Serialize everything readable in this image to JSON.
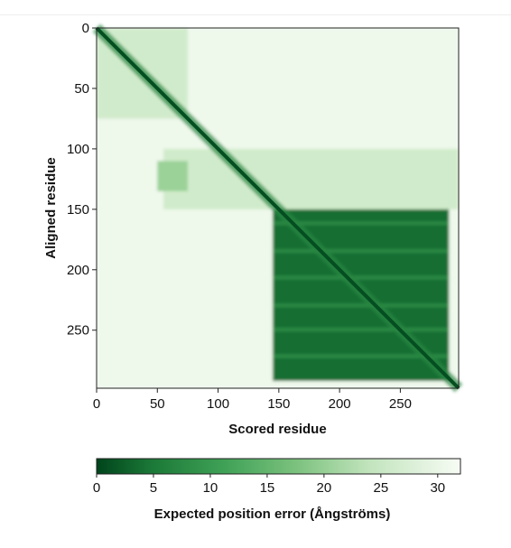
{
  "chart_data": {
    "type": "heatmap",
    "description_free": true,
    "xlabel": "Scored residue",
    "ylabel": "Aligned residue",
    "n_residues": 298,
    "xlim": [
      0,
      298
    ],
    "ylim": [
      0,
      298
    ],
    "x_ticks": [
      0,
      50,
      100,
      150,
      200,
      250
    ],
    "y_ticks": [
      0,
      50,
      100,
      150,
      200,
      250
    ],
    "colorbar": {
      "label": "Expected position error (Ångströms)",
      "range": [
        0,
        32
      ],
      "ticks": [
        0,
        5,
        10,
        15,
        20,
        25,
        30
      ],
      "color_low": "#00441b",
      "color_high": "#f7fcf5"
    },
    "regions": [
      {
        "rows": [
          0,
          298
        ],
        "cols": [
          0,
          298
        ],
        "pae": 30
      },
      {
        "rows": [
          100,
          150
        ],
        "cols": [
          55,
          298
        ],
        "pae": 24
      },
      {
        "rows": [
          150,
          292
        ],
        "cols": [
          145,
          290
        ],
        "pae": 4
      },
      {
        "rows": [
          0,
          75
        ],
        "cols": [
          0,
          75
        ],
        "pae": 24
      },
      {
        "rows": [
          110,
          135
        ],
        "cols": [
          50,
          75
        ],
        "pae": 18
      }
    ],
    "diagonal_band_pae": 1
  }
}
